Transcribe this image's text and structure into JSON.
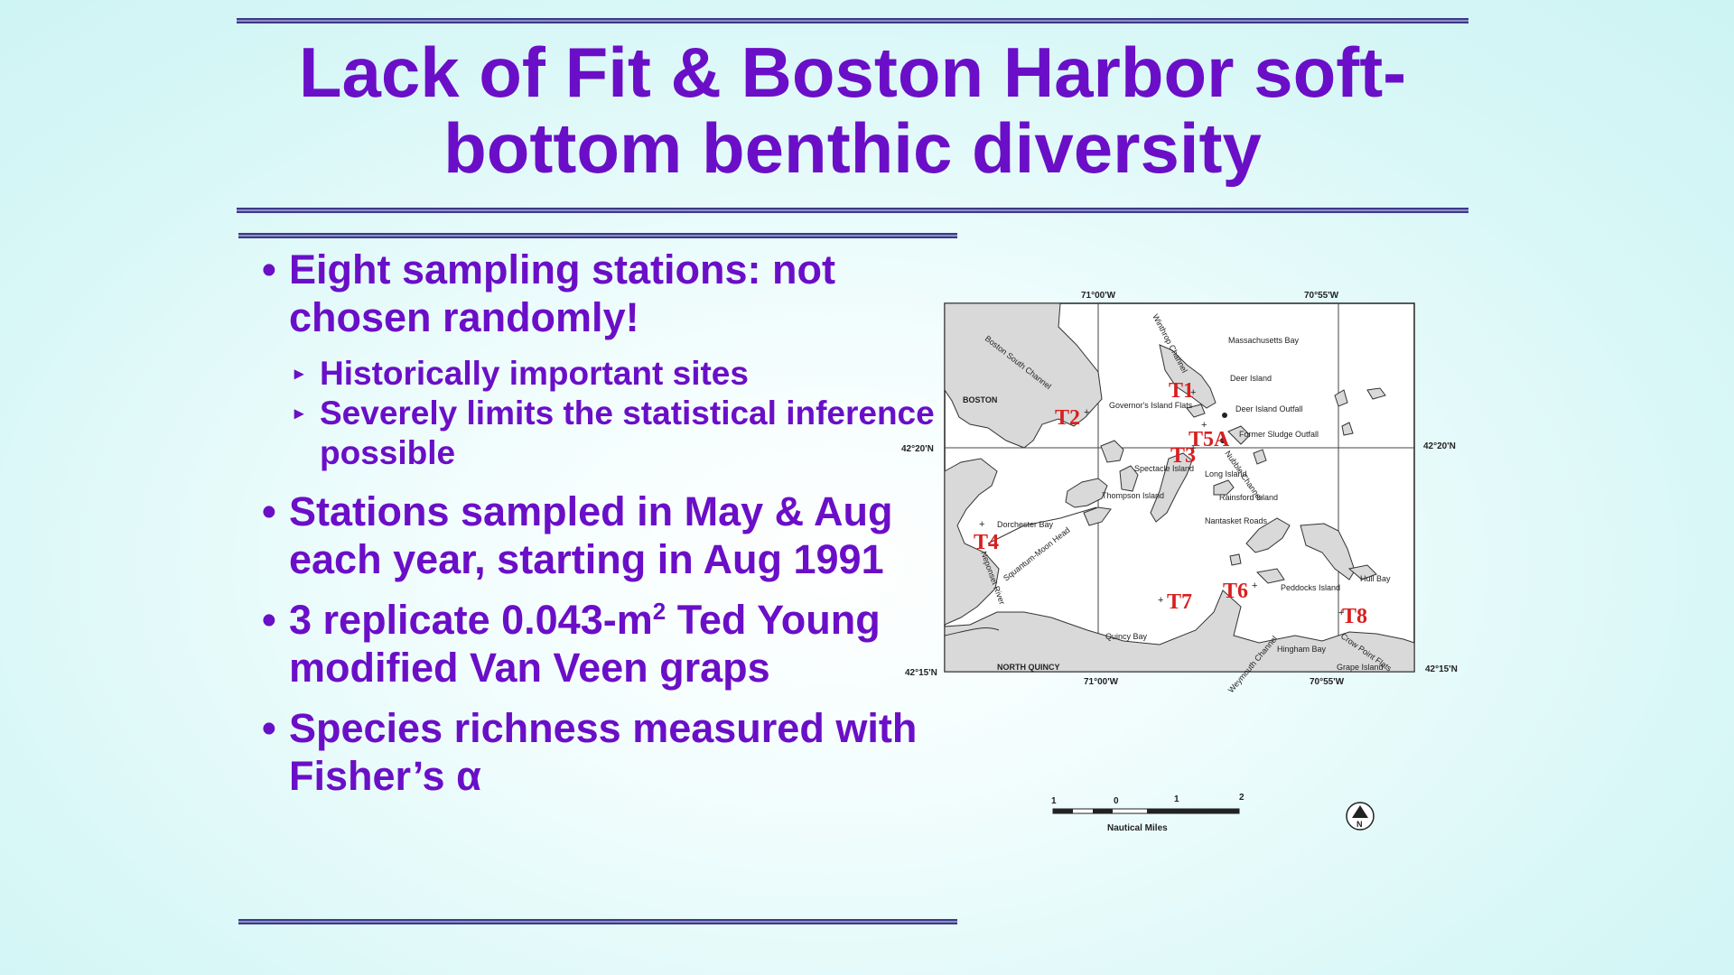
{
  "slide": {
    "title_line1": "Lack of Fit & Boston Harbor soft-",
    "title_line2": "bottom benthic diversity"
  },
  "bullets": [
    {
      "text": "Eight sampling stations: not chosen randomly!",
      "sub": [
        "Historically important sites",
        "Severely limits the statistical inference possible"
      ]
    },
    {
      "text": "Stations sampled in May & Aug each year, starting in Aug 1991"
    },
    {
      "text_pre": "3 replicate 0.043-m",
      "text_sup": "2",
      "text_post": " Ted Young modified Van Veen graps"
    },
    {
      "text": "Species richness measured with Fisher’s α"
    }
  ],
  "map": {
    "lon_labels": [
      "71°00'W",
      "70°55'W",
      "71°00'W",
      "70°55'W"
    ],
    "lat_labels": [
      "42°20'N",
      "42°20'N",
      "42°15'N",
      "42°15'N"
    ],
    "place_names": [
      "Massachusetts Bay",
      "BOSTON",
      "Boston South Channel",
      "Winthrop Channel",
      "Deer Island",
      "Deer Island Outfall",
      "Former Sludge Outfall",
      "Governor's Island Flats",
      "Nubble Channel",
      "Spectacle Island",
      "Long Island",
      "Thompson Island",
      "Rainsford Island",
      "Nantasket Roads",
      "Dorchester Bay",
      "Neponset River",
      "Squantum-Moon Head",
      "Peddocks Island",
      "Hull Bay",
      "Quincy Bay",
      "Hingham Bay",
      "Crow Point Flats",
      "Grape Island",
      "NORTH QUINCY",
      "Weymouth Channel"
    ],
    "stations": [
      "T1",
      "T2",
      "T3",
      "T4",
      "T5A",
      "T6",
      "T7",
      "T8"
    ],
    "scale_ticks": [
      "1",
      "0",
      "1",
      "2"
    ],
    "scale_label": "Nautical Miles",
    "north_label": "N",
    "station_color": "#d81f1f"
  },
  "colors": {
    "title": "#6a0fc7",
    "rule": "#3a3a8a"
  }
}
